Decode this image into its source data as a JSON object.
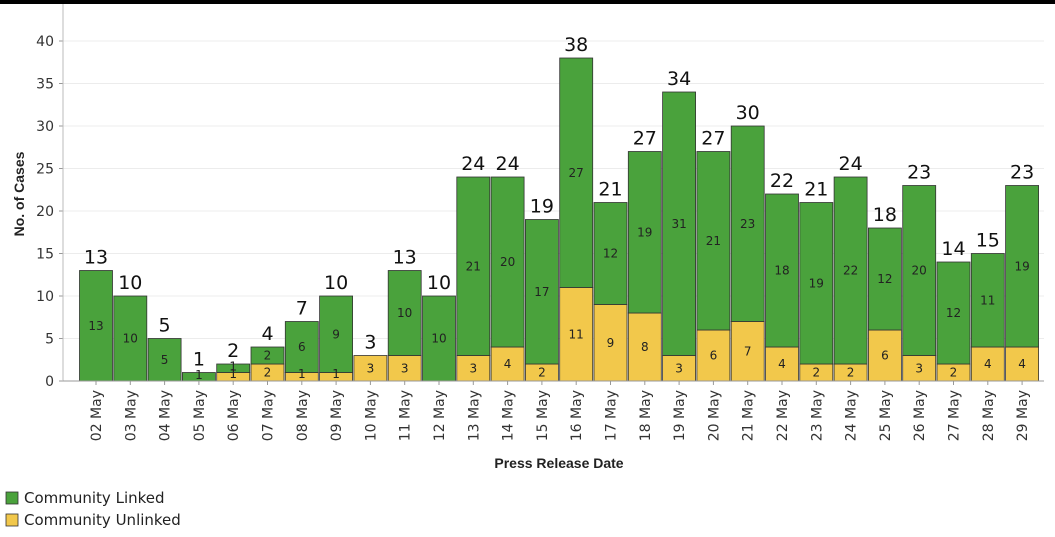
{
  "chart_data": {
    "type": "bar",
    "stacked": true,
    "xlabel": "Press Release Date",
    "ylabel": "No. of Cases",
    "ylim": [
      0,
      42
    ],
    "yticks": [
      0,
      5,
      10,
      15,
      20,
      25,
      30,
      35,
      40
    ],
    "grid": true,
    "legend_position": "bottom-left",
    "categories": [
      "02 May",
      "03 May",
      "04 May",
      "05 May",
      "06 May",
      "07 May",
      "08 May",
      "09 May",
      "10 May",
      "11 May",
      "12 May",
      "13 May",
      "14 May",
      "15 May",
      "16 May",
      "17 May",
      "18 May",
      "19 May",
      "20 May",
      "21 May",
      "22 May",
      "23 May",
      "24 May",
      "25 May",
      "26 May",
      "27 May",
      "28 May",
      "29 May"
    ],
    "totals": [
      13,
      10,
      5,
      1,
      2,
      4,
      7,
      10,
      3,
      13,
      10,
      24,
      24,
      19,
      38,
      21,
      27,
      34,
      27,
      30,
      22,
      21,
      24,
      18,
      23,
      14,
      15,
      23
    ],
    "series": [
      {
        "name": "Community Unlinked",
        "color": "#f2c84b",
        "values": [
          0,
          0,
          0,
          0,
          1,
          2,
          1,
          1,
          3,
          3,
          0,
          3,
          4,
          2,
          11,
          9,
          8,
          3,
          6,
          7,
          4,
          2,
          2,
          6,
          3,
          2,
          4,
          4
        ]
      },
      {
        "name": "Community Linked",
        "color": "#4aa23c",
        "values": [
          13,
          10,
          5,
          1,
          1,
          2,
          6,
          9,
          0,
          10,
          10,
          21,
          20,
          17,
          27,
          12,
          19,
          31,
          21,
          23,
          18,
          19,
          22,
          12,
          20,
          12,
          11,
          19
        ]
      }
    ],
    "segment_labels": {
      "Community Unlinked": [
        "",
        "",
        "",
        "",
        "1",
        "2",
        "1",
        "1",
        "3",
        "3",
        "",
        "3",
        "4",
        "2",
        "11",
        "9",
        "8",
        "3",
        "6",
        "7",
        "4",
        "2",
        "2",
        "6",
        "3",
        "2",
        "4",
        "4"
      ],
      "Community Linked": [
        "13",
        "10",
        "5",
        "1",
        "1",
        "2",
        "6",
        "9",
        "",
        "10",
        "10",
        "21",
        "20",
        "17",
        "27",
        "12",
        "19",
        "31",
        "21",
        "23",
        "18",
        "19",
        "22",
        "12",
        "20",
        "12",
        "11",
        "19"
      ]
    }
  }
}
